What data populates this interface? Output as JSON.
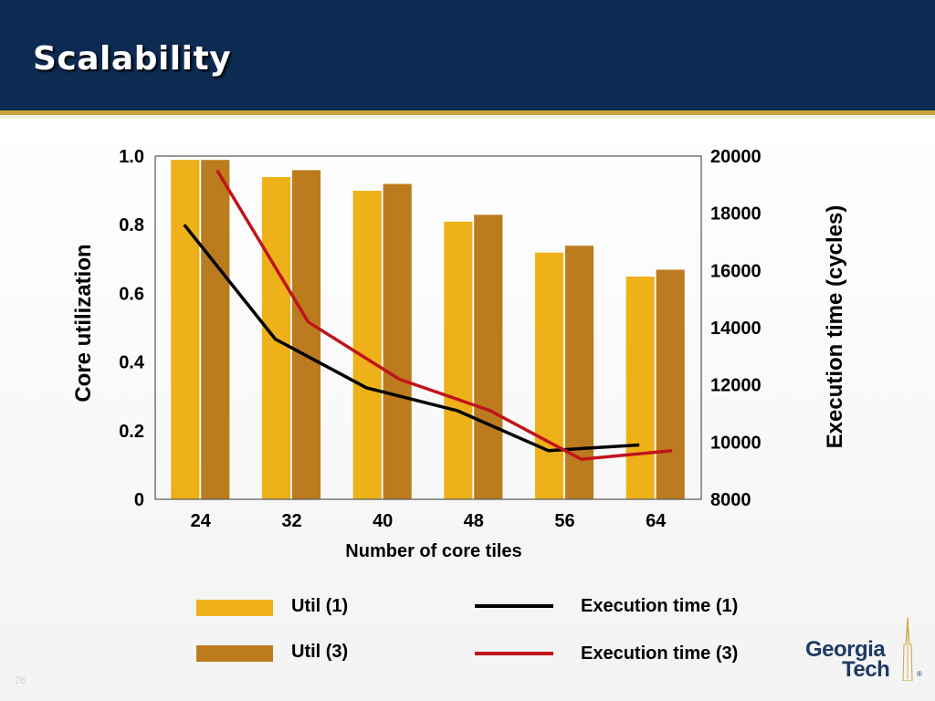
{
  "slide": {
    "title": "Scalability",
    "page_number": "26"
  },
  "logo": {
    "line1": "Georgia",
    "line2": "Tech",
    "mark": "®"
  },
  "chart_data": {
    "type": "bar",
    "categories": [
      "24",
      "32",
      "40",
      "48",
      "56",
      "64"
    ],
    "xlabel": "Number of core tiles",
    "ylabel": "Core utilization",
    "y2label": "Execution time (cycles)",
    "ylim": [
      0,
      1.0
    ],
    "y2lim": [
      8000,
      20000
    ],
    "yticks": [
      "0",
      "0.2",
      "0.4",
      "0.6",
      "0.8",
      "1.0"
    ],
    "y2ticks": [
      "8000",
      "10000",
      "12000",
      "14000",
      "16000",
      "18000",
      "20000"
    ],
    "grid": false,
    "legend_position": "bottom",
    "series": [
      {
        "name": "Util (1)",
        "type": "bar",
        "axis": "left",
        "color": "#eeb11a",
        "values": [
          0.99,
          0.94,
          0.9,
          0.81,
          0.72,
          0.65
        ]
      },
      {
        "name": "Util (3)",
        "type": "bar",
        "axis": "left",
        "color": "#bc7b1f",
        "values": [
          0.99,
          0.96,
          0.92,
          0.83,
          0.74,
          0.67
        ]
      },
      {
        "name": "Execution time (1)",
        "type": "line",
        "axis": "right",
        "color": "#000000",
        "values": [
          17600,
          13600,
          11900,
          11100,
          9700,
          9900
        ]
      },
      {
        "name": "Execution time (3)",
        "type": "line",
        "axis": "right",
        "color": "#c0141b",
        "values": [
          19500,
          14200,
          12200,
          11100,
          9400,
          9700
        ]
      }
    ]
  },
  "colors": {
    "header_bg": "#0c2a52",
    "header_rule": "#c8a53a",
    "util1": "#eeb11a",
    "util3": "#bc7b1f",
    "exec1": "#000000",
    "exec3": "#c0141b"
  }
}
